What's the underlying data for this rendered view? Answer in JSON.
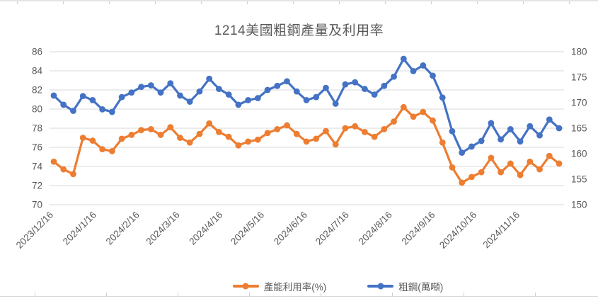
{
  "chart_data": {
    "type": "line",
    "title": "1214美國粗鋼產量及利用率",
    "grid": true,
    "legend_position": "bottom",
    "colors": {
      "grid": "#D9D9D9",
      "text": "#595959",
      "utilization": "#ED7D31",
      "crude_steel": "#4472C4"
    },
    "left_axis": {
      "label": "",
      "min": 70,
      "max": 86,
      "ticks": [
        70,
        72,
        74,
        76,
        78,
        80,
        82,
        84,
        86
      ]
    },
    "right_axis": {
      "label": "",
      "min": 150,
      "max": 180,
      "ticks": [
        150,
        155,
        160,
        165,
        170,
        175,
        180
      ]
    },
    "x_ticks": [
      {
        "label": "2023/12/16",
        "week": 0
      },
      {
        "label": "2024/1/16",
        "week": 4.43
      },
      {
        "label": "2024/2/16",
        "week": 8.86
      },
      {
        "label": "2024/3/16",
        "week": 13
      },
      {
        "label": "2024/4/16",
        "week": 17.43
      },
      {
        "label": "2024/5/16",
        "week": 21.71
      },
      {
        "label": "2024/6/16",
        "week": 26.14
      },
      {
        "label": "2024/7/16",
        "week": 30.43
      },
      {
        "label": "2024/8/16",
        "week": 34.86
      },
      {
        "label": "2024/9/16",
        "week": 39.29
      },
      {
        "label": "2024/10/16",
        "week": 43.57
      },
      {
        "label": "2024/11/16",
        "week": 48
      }
    ],
    "x": [
      "2023/12/16",
      "2023/12/23",
      "2023/12/30",
      "2024/1/6",
      "2024/1/13",
      "2024/1/20",
      "2024/1/27",
      "2024/2/3",
      "2024/2/10",
      "2024/2/17",
      "2024/2/24",
      "2024/3/2",
      "2024/3/9",
      "2024/3/16",
      "2024/3/23",
      "2024/3/30",
      "2024/4/6",
      "2024/4/13",
      "2024/4/20",
      "2024/4/27",
      "2024/5/4",
      "2024/5/11",
      "2024/5/18",
      "2024/5/25",
      "2024/6/1",
      "2024/6/8",
      "2024/6/15",
      "2024/6/22",
      "2024/6/29",
      "2024/7/6",
      "2024/7/13",
      "2024/7/20",
      "2024/7/27",
      "2024/8/3",
      "2024/8/10",
      "2024/8/17",
      "2024/8/24",
      "2024/8/31",
      "2024/9/7",
      "2024/9/14",
      "2024/9/21",
      "2024/9/28",
      "2024/10/5",
      "2024/10/12",
      "2024/10/19",
      "2024/10/26",
      "2024/11/2",
      "2024/11/9",
      "2024/11/16",
      "2024/11/23",
      "2024/11/30",
      "2024/12/7",
      "2024/12/14"
    ],
    "series": [
      {
        "name": "產能利用率(%)",
        "axis": "left",
        "color": "#ED7D31",
        "values": [
          74.5,
          73.7,
          73.2,
          77.0,
          76.7,
          75.8,
          75.6,
          76.9,
          77.3,
          77.8,
          77.9,
          77.3,
          78.1,
          77.0,
          76.5,
          77.4,
          78.5,
          77.6,
          77.1,
          76.2,
          76.6,
          76.8,
          77.5,
          77.9,
          78.3,
          77.4,
          76.6,
          76.9,
          77.7,
          76.3,
          78.0,
          78.2,
          77.6,
          77.1,
          77.9,
          78.7,
          80.2,
          79.2,
          79.7,
          78.8,
          76.5,
          73.9,
          72.3,
          72.9,
          73.4,
          74.9,
          73.4,
          74.3,
          73.1,
          74.5,
          73.7,
          75.1,
          74.3
        ]
      },
      {
        "name": "粗鋼(萬噸)",
        "axis": "right",
        "color": "#4472C4",
        "values": [
          171.4,
          169.6,
          168.4,
          171.3,
          170.5,
          168.7,
          168.2,
          171.1,
          172.0,
          173.1,
          173.4,
          172.0,
          173.8,
          171.4,
          170.2,
          172.2,
          174.7,
          172.7,
          171.6,
          169.6,
          170.5,
          170.9,
          172.5,
          173.3,
          174.2,
          172.2,
          170.5,
          171.1,
          172.9,
          169.8,
          173.6,
          174.0,
          172.7,
          171.6,
          173.3,
          175.1,
          178.6,
          176.2,
          177.3,
          175.3,
          171.0,
          164.4,
          160.2,
          161.4,
          162.5,
          166.0,
          162.8,
          164.8,
          162.4,
          165.4,
          163.6,
          166.7,
          165.0
        ]
      }
    ]
  }
}
